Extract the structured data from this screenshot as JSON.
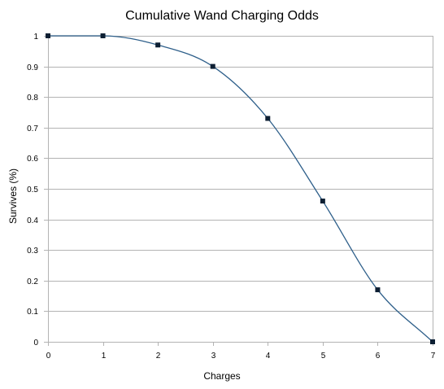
{
  "chart_data": {
    "type": "line",
    "title": "Cumulative Wand Charging Odds",
    "xlabel": "Charges",
    "ylabel": "Survives  (%)",
    "xlim": [
      0,
      7
    ],
    "ylim": [
      0,
      1
    ],
    "x_ticks": [
      "0",
      "1",
      "2",
      "3",
      "4",
      "5",
      "6",
      "7"
    ],
    "y_ticks": [
      "0",
      "0.1",
      "0.2",
      "0.3",
      "0.4",
      "0.5",
      "0.6",
      "0.7",
      "0.8",
      "0.9",
      "1"
    ],
    "grid": "horizontal",
    "legend": "none",
    "smooth": true,
    "series": [
      {
        "x": [
          0,
          1,
          2,
          3,
          4,
          5,
          6,
          7
        ],
        "values": [
          1,
          1,
          0.97,
          0.9,
          0.73,
          0.46,
          0.17,
          0
        ]
      }
    ],
    "colors": {
      "line": "#2e5f8a",
      "marker": "#0d1f33"
    }
  }
}
